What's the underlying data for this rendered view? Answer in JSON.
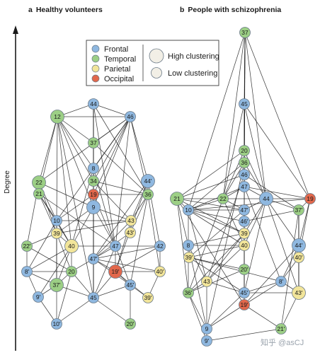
{
  "panels": {
    "a": {
      "letter": "a",
      "title": "Healthy volunteers"
    },
    "b": {
      "letter": "b",
      "title": "People with schizophrenia"
    }
  },
  "y_axis_label": "Degree",
  "watermark": "知乎 @asCJ",
  "legend": {
    "lobes": [
      {
        "name": "Frontal",
        "color": "#8fb8e0"
      },
      {
        "name": "Temporal",
        "color": "#9ccf85"
      },
      {
        "name": "Parietal",
        "color": "#f2e59a"
      },
      {
        "name": "Occipital",
        "color": "#e2684c"
      }
    ],
    "clustering": [
      {
        "name": "High clustering",
        "size": "large"
      },
      {
        "name": "Low clustering",
        "size": "small"
      }
    ]
  },
  "networks": {
    "healthy": {
      "nodes": [
        {
          "id": "44",
          "lobe": "Frontal",
          "clustering": "low"
        },
        {
          "id": "46",
          "lobe": "Frontal",
          "clustering": "low"
        },
        {
          "id": "12",
          "lobe": "Temporal",
          "clustering": "high"
        },
        {
          "id": "37",
          "lobe": "Temporal",
          "clustering": "low"
        },
        {
          "id": "8",
          "lobe": "Frontal",
          "clustering": "low"
        },
        {
          "id": "22",
          "lobe": "Temporal",
          "clustering": "high"
        },
        {
          "id": "44'",
          "lobe": "Frontal",
          "clustering": "high"
        },
        {
          "id": "34",
          "lobe": "Temporal",
          "clustering": "low"
        },
        {
          "id": "21",
          "lobe": "Temporal",
          "clustering": "low"
        },
        {
          "id": "19",
          "lobe": "Occipital",
          "clustering": "low"
        },
        {
          "id": "36",
          "lobe": "Temporal",
          "clustering": "low"
        },
        {
          "id": "9",
          "lobe": "Frontal",
          "clustering": "high"
        },
        {
          "id": "10",
          "lobe": "Frontal",
          "clustering": "low"
        },
        {
          "id": "43",
          "lobe": "Parietal",
          "clustering": "low"
        },
        {
          "id": "39",
          "lobe": "Parietal",
          "clustering": "low"
        },
        {
          "id": "43'",
          "lobe": "Parietal",
          "clustering": "low"
        },
        {
          "id": "22'",
          "lobe": "Temporal",
          "clustering": "low"
        },
        {
          "id": "40",
          "lobe": "Parietal",
          "clustering": "high"
        },
        {
          "id": "47",
          "lobe": "Frontal",
          "clustering": "low"
        },
        {
          "id": "42",
          "lobe": "Frontal",
          "clustering": "low"
        },
        {
          "id": "47'",
          "lobe": "Frontal",
          "clustering": "low"
        },
        {
          "id": "8'",
          "lobe": "Frontal",
          "clustering": "low"
        },
        {
          "id": "20",
          "lobe": "Temporal",
          "clustering": "low"
        },
        {
          "id": "19'",
          "lobe": "Occipital",
          "clustering": "high"
        },
        {
          "id": "40'",
          "lobe": "Parietal",
          "clustering": "low"
        },
        {
          "id": "37'",
          "lobe": "Temporal",
          "clustering": "high"
        },
        {
          "id": "45'",
          "lobe": "Frontal",
          "clustering": "low"
        },
        {
          "id": "9'",
          "lobe": "Frontal",
          "clustering": "low"
        },
        {
          "id": "45",
          "lobe": "Frontal",
          "clustering": "low"
        },
        {
          "id": "39'",
          "lobe": "Parietal",
          "clustering": "low"
        },
        {
          "id": "10'",
          "lobe": "Frontal",
          "clustering": "low"
        },
        {
          "id": "20'",
          "lobe": "Temporal",
          "clustering": "low"
        }
      ],
      "edges": [
        [
          "12",
          "44"
        ],
        [
          "12",
          "46"
        ],
        [
          "12",
          "37"
        ],
        [
          "12",
          "8"
        ],
        [
          "12",
          "34"
        ],
        [
          "12",
          "9"
        ],
        [
          "12",
          "22"
        ],
        [
          "12",
          "21"
        ],
        [
          "12",
          "10"
        ],
        [
          "12",
          "45"
        ],
        [
          "44",
          "46"
        ],
        [
          "44",
          "37"
        ],
        [
          "44",
          "8"
        ],
        [
          "44",
          "34"
        ],
        [
          "44",
          "19"
        ],
        [
          "44",
          "9"
        ],
        [
          "44",
          "47"
        ],
        [
          "44",
          "45"
        ],
        [
          "44",
          "36"
        ],
        [
          "46",
          "37"
        ],
        [
          "46",
          "8"
        ],
        [
          "46",
          "34"
        ],
        [
          "46",
          "22"
        ],
        [
          "46",
          "44'"
        ],
        [
          "46",
          "36"
        ],
        [
          "46",
          "19"
        ],
        [
          "46",
          "10"
        ],
        [
          "46",
          "47"
        ],
        [
          "37",
          "8"
        ],
        [
          "37",
          "34"
        ],
        [
          "37",
          "9"
        ],
        [
          "37",
          "45"
        ],
        [
          "8",
          "34"
        ],
        [
          "8",
          "19"
        ],
        [
          "8",
          "9"
        ],
        [
          "8",
          "47"
        ],
        [
          "34",
          "19"
        ],
        [
          "34",
          "9"
        ],
        [
          "34",
          "36"
        ],
        [
          "34",
          "45"
        ],
        [
          "19",
          "9"
        ],
        [
          "19",
          "36"
        ],
        [
          "19",
          "47"
        ],
        [
          "19",
          "10"
        ],
        [
          "9",
          "47"
        ],
        [
          "9",
          "45"
        ],
        [
          "9",
          "40"
        ],
        [
          "9",
          "43"
        ],
        [
          "22",
          "21"
        ],
        [
          "22",
          "10"
        ],
        [
          "22",
          "9"
        ],
        [
          "22",
          "39"
        ],
        [
          "22",
          "22'"
        ],
        [
          "21",
          "10"
        ],
        [
          "21",
          "40"
        ],
        [
          "21",
          "47"
        ],
        [
          "44'",
          "36"
        ],
        [
          "44'",
          "43"
        ],
        [
          "44'",
          "42"
        ],
        [
          "44'",
          "47'"
        ],
        [
          "44'",
          "19'"
        ],
        [
          "36",
          "43"
        ],
        [
          "36",
          "45'"
        ],
        [
          "36",
          "40'"
        ],
        [
          "36",
          "43'"
        ],
        [
          "10",
          "39"
        ],
        [
          "10",
          "40"
        ],
        [
          "10",
          "8'"
        ],
        [
          "10",
          "37'"
        ],
        [
          "39",
          "40"
        ],
        [
          "39",
          "22'"
        ],
        [
          "39",
          "37'"
        ],
        [
          "39",
          "20"
        ],
        [
          "40",
          "47"
        ],
        [
          "40",
          "20"
        ],
        [
          "40",
          "37'"
        ],
        [
          "40",
          "8'"
        ],
        [
          "40",
          "9'"
        ],
        [
          "47",
          "20"
        ],
        [
          "47",
          "45"
        ],
        [
          "47",
          "19'"
        ],
        [
          "47",
          "45'"
        ],
        [
          "47",
          "42"
        ],
        [
          "43",
          "43'"
        ],
        [
          "43",
          "47'"
        ],
        [
          "43",
          "19'"
        ],
        [
          "43'",
          "47'"
        ],
        [
          "43",
          "39"
        ],
        [
          "47'",
          "42"
        ],
        [
          "47'",
          "19'"
        ],
        [
          "47'",
          "45'"
        ],
        [
          "47'",
          "40'"
        ],
        [
          "42",
          "40'"
        ],
        [
          "42",
          "19'"
        ],
        [
          "19'",
          "45'"
        ],
        [
          "19'",
          "40'"
        ],
        [
          "19'",
          "39'"
        ],
        [
          "19'",
          "45"
        ],
        [
          "45'",
          "39'"
        ],
        [
          "45'",
          "20'"
        ],
        [
          "40'",
          "39'"
        ],
        [
          "8'",
          "37'"
        ],
        [
          "8'",
          "9'"
        ],
        [
          "8'",
          "20"
        ],
        [
          "37'",
          "9'"
        ],
        [
          "37'",
          "20"
        ],
        [
          "37'",
          "45"
        ],
        [
          "37'",
          "10'"
        ],
        [
          "20",
          "45"
        ],
        [
          "20",
          "10'"
        ],
        [
          "9'",
          "10'"
        ],
        [
          "45",
          "10'"
        ],
        [
          "45",
          "20'"
        ],
        [
          "45",
          "45'"
        ],
        [
          "22'",
          "8'"
        ],
        [
          "22'",
          "20"
        ],
        [
          "10",
          "43"
        ],
        [
          "39",
          "9"
        ],
        [
          "8",
          "40"
        ],
        [
          "34",
          "43"
        ],
        [
          "12",
          "40"
        ],
        [
          "21",
          "39"
        ],
        [
          "37",
          "36"
        ],
        [
          "46",
          "9"
        ]
      ]
    },
    "schizophrenia": {
      "nodes": [
        {
          "id": "37",
          "lobe": "Temporal",
          "clustering": "low"
        },
        {
          "id": "45",
          "lobe": "Frontal",
          "clustering": "low"
        },
        {
          "id": "20",
          "lobe": "Temporal",
          "clustering": "low"
        },
        {
          "id": "36",
          "lobe": "Temporal",
          "clustering": "low"
        },
        {
          "id": "46",
          "lobe": "Frontal",
          "clustering": "low"
        },
        {
          "id": "47",
          "lobe": "Frontal",
          "clustering": "low"
        },
        {
          "id": "21",
          "lobe": "Temporal",
          "clustering": "high"
        },
        {
          "id": "22",
          "lobe": "Temporal",
          "clustering": "low"
        },
        {
          "id": "44",
          "lobe": "Frontal",
          "clustering": "high"
        },
        {
          "id": "19",
          "lobe": "Occipital",
          "clustering": "low"
        },
        {
          "id": "10",
          "lobe": "Frontal",
          "clustering": "low"
        },
        {
          "id": "47'",
          "lobe": "Frontal",
          "clustering": "low"
        },
        {
          "id": "37'",
          "lobe": "Temporal",
          "clustering": "low"
        },
        {
          "id": "46'",
          "lobe": "Frontal",
          "clustering": "low"
        },
        {
          "id": "39",
          "lobe": "Parietal",
          "clustering": "low"
        },
        {
          "id": "8",
          "lobe": "Frontal",
          "clustering": "low"
        },
        {
          "id": "40",
          "lobe": "Parietal",
          "clustering": "low"
        },
        {
          "id": "44'",
          "lobe": "Frontal",
          "clustering": "high"
        },
        {
          "id": "39'",
          "lobe": "Parietal",
          "clustering": "low"
        },
        {
          "id": "40'",
          "lobe": "Parietal",
          "clustering": "low"
        },
        {
          "id": "20'",
          "lobe": "Temporal",
          "clustering": "low"
        },
        {
          "id": "43",
          "lobe": "Parietal",
          "clustering": "low"
        },
        {
          "id": "8'",
          "lobe": "Frontal",
          "clustering": "low"
        },
        {
          "id": "36'",
          "lobe": "Temporal",
          "clustering": "low"
        },
        {
          "id": "45'",
          "lobe": "Frontal",
          "clustering": "low"
        },
        {
          "id": "43'",
          "lobe": "Parietal",
          "clustering": "high"
        },
        {
          "id": "19'",
          "lobe": "Occipital",
          "clustering": "low"
        },
        {
          "id": "9",
          "lobe": "Frontal",
          "clustering": "low"
        },
        {
          "id": "9'",
          "lobe": "Frontal",
          "clustering": "low"
        },
        {
          "id": "21'",
          "lobe": "Temporal",
          "clustering": "low"
        }
      ],
      "edges": [
        [
          "37",
          "45"
        ],
        [
          "37",
          "20"
        ],
        [
          "37",
          "36"
        ],
        [
          "37",
          "46"
        ],
        [
          "37",
          "47"
        ],
        [
          "37",
          "44"
        ],
        [
          "37",
          "47'"
        ],
        [
          "37",
          "10"
        ],
        [
          "37",
          "22"
        ],
        [
          "37",
          "19"
        ],
        [
          "45",
          "20"
        ],
        [
          "45",
          "22"
        ],
        [
          "45",
          "44"
        ],
        [
          "45",
          "19"
        ],
        [
          "45",
          "46"
        ],
        [
          "20",
          "36"
        ],
        [
          "20",
          "22"
        ],
        [
          "20",
          "44"
        ],
        [
          "20",
          "21"
        ],
        [
          "20",
          "47"
        ],
        [
          "36",
          "46"
        ],
        [
          "36",
          "22"
        ],
        [
          "36",
          "44"
        ],
        [
          "36",
          "10"
        ],
        [
          "46",
          "47"
        ],
        [
          "46",
          "21"
        ],
        [
          "46",
          "37'"
        ],
        [
          "47",
          "44"
        ],
        [
          "47",
          "22"
        ],
        [
          "47",
          "19"
        ],
        [
          "47",
          "10"
        ],
        [
          "21",
          "10"
        ],
        [
          "21",
          "22"
        ],
        [
          "21",
          "47'"
        ],
        [
          "21",
          "8"
        ],
        [
          "21",
          "36'"
        ],
        [
          "21",
          "39"
        ],
        [
          "22",
          "47'"
        ],
        [
          "22",
          "10"
        ],
        [
          "22",
          "40"
        ],
        [
          "22",
          "44"
        ],
        [
          "44",
          "19"
        ],
        [
          "44",
          "37'"
        ],
        [
          "44",
          "47'"
        ],
        [
          "44",
          "39"
        ],
        [
          "44",
          "40"
        ],
        [
          "44",
          "45'"
        ],
        [
          "44",
          "44'"
        ],
        [
          "19",
          "37'"
        ],
        [
          "19",
          "44'"
        ],
        [
          "19",
          "40'"
        ],
        [
          "19",
          "10"
        ],
        [
          "10",
          "47'"
        ],
        [
          "10",
          "39"
        ],
        [
          "10",
          "8"
        ],
        [
          "10",
          "40"
        ],
        [
          "10",
          "43"
        ],
        [
          "10",
          "46'"
        ],
        [
          "47'",
          "46'"
        ],
        [
          "47'",
          "39"
        ],
        [
          "47'",
          "40"
        ],
        [
          "47'",
          "39'"
        ],
        [
          "37'",
          "44'"
        ],
        [
          "37'",
          "40'"
        ],
        [
          "37'",
          "43'"
        ],
        [
          "37'",
          "46'"
        ],
        [
          "46'",
          "39"
        ],
        [
          "46'",
          "40"
        ],
        [
          "46'",
          "45'"
        ],
        [
          "39",
          "8"
        ],
        [
          "39",
          "40"
        ],
        [
          "39",
          "43"
        ],
        [
          "39",
          "36'"
        ],
        [
          "8",
          "40"
        ],
        [
          "8",
          "43"
        ],
        [
          "8",
          "36'"
        ],
        [
          "8",
          "9"
        ],
        [
          "40",
          "39'"
        ],
        [
          "40",
          "20'"
        ],
        [
          "40",
          "43"
        ],
        [
          "44'",
          "40'"
        ],
        [
          "44'",
          "8'"
        ],
        [
          "44'",
          "43'"
        ],
        [
          "44'",
          "19'"
        ],
        [
          "39'",
          "20'"
        ],
        [
          "39'",
          "8'"
        ],
        [
          "39'",
          "45'"
        ],
        [
          "40'",
          "43'"
        ],
        [
          "40'",
          "8'"
        ],
        [
          "20'",
          "45'"
        ],
        [
          "20'",
          "19'"
        ],
        [
          "20'",
          "36'"
        ],
        [
          "43",
          "36'"
        ],
        [
          "43",
          "45'"
        ],
        [
          "43",
          "9"
        ],
        [
          "8'",
          "45'"
        ],
        [
          "8'",
          "43'"
        ],
        [
          "8'",
          "19'"
        ],
        [
          "36'",
          "9"
        ],
        [
          "36'",
          "9'"
        ],
        [
          "45'",
          "19'"
        ],
        [
          "45'",
          "43'"
        ],
        [
          "45'",
          "9"
        ],
        [
          "19'",
          "9"
        ],
        [
          "19'",
          "21'"
        ],
        [
          "9",
          "9'"
        ],
        [
          "9'",
          "21'"
        ],
        [
          "43'",
          "21'"
        ],
        [
          "47",
          "8'"
        ],
        [
          "46",
          "43"
        ],
        [
          "36",
          "9"
        ],
        [
          "20",
          "45'"
        ],
        [
          "22",
          "36'"
        ],
        [
          "47'",
          "20'"
        ],
        [
          "44",
          "43'"
        ],
        [
          "21",
          "19'"
        ],
        [
          "37'",
          "21'"
        ]
      ]
    }
  }
}
